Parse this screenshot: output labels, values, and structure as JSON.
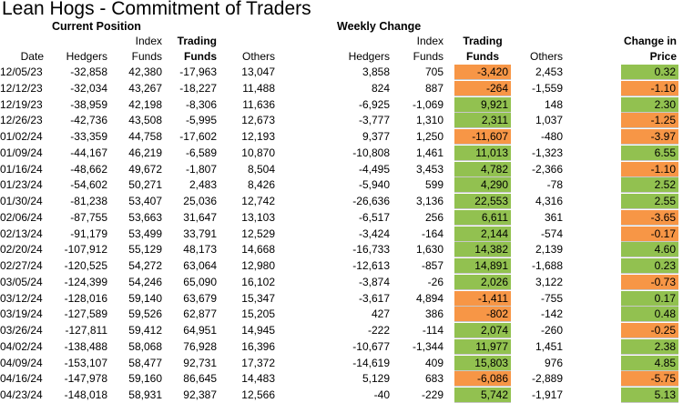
{
  "title": "Lean Hogs - Commitment of Traders",
  "sections": {
    "current_position": "Current Position",
    "weekly_change": "Weekly Change"
  },
  "headers": {
    "date": "Date",
    "hedgers": "Hedgers",
    "index_line1": "Index",
    "index_line2": "Funds",
    "trading_line1": "Trading",
    "trading_line2": "Funds",
    "others": "Others",
    "wc_hedgers": "Hedgers",
    "wc_index_line1": "Index",
    "wc_index_line2": "Funds",
    "wc_trading_line1": "Trading",
    "wc_trading_line2": "Funds",
    "wc_others": "Others",
    "price_line1": "Change in",
    "price_line2": "Price"
  },
  "colors": {
    "positive": "#92c150",
    "negative": "#f79646"
  },
  "rows": [
    {
      "date": "12/05/23",
      "hedgers": "-32,858",
      "index_funds": "42,380",
      "trading_funds": "-17,963",
      "others": "13,047",
      "chg_hedgers": "3,858",
      "chg_index": "705",
      "chg_trading": "-3,420",
      "chg_others": "2,453",
      "price_change": "0.32"
    },
    {
      "date": "12/12/23",
      "hedgers": "-32,034",
      "index_funds": "43,267",
      "trading_funds": "-18,227",
      "others": "11,488",
      "chg_hedgers": "824",
      "chg_index": "887",
      "chg_trading": "-264",
      "chg_others": "-1,559",
      "price_change": "-1.10"
    },
    {
      "date": "12/19/23",
      "hedgers": "-38,959",
      "index_funds": "42,198",
      "trading_funds": "-8,306",
      "others": "11,636",
      "chg_hedgers": "-6,925",
      "chg_index": "-1,069",
      "chg_trading": "9,921",
      "chg_others": "148",
      "price_change": "2.30"
    },
    {
      "date": "12/26/23",
      "hedgers": "-42,736",
      "index_funds": "43,508",
      "trading_funds": "-5,995",
      "others": "12,673",
      "chg_hedgers": "-3,777",
      "chg_index": "1,310",
      "chg_trading": "2,311",
      "chg_others": "1,037",
      "price_change": "-1.25"
    },
    {
      "date": "01/02/24",
      "hedgers": "-33,359",
      "index_funds": "44,758",
      "trading_funds": "-17,602",
      "others": "12,193",
      "chg_hedgers": "9,377",
      "chg_index": "1,250",
      "chg_trading": "-11,607",
      "chg_others": "-480",
      "price_change": "-3.97"
    },
    {
      "date": "01/09/24",
      "hedgers": "-44,167",
      "index_funds": "46,219",
      "trading_funds": "-6,589",
      "others": "10,870",
      "chg_hedgers": "-10,808",
      "chg_index": "1,461",
      "chg_trading": "11,013",
      "chg_others": "-1,323",
      "price_change": "6.55"
    },
    {
      "date": "01/16/24",
      "hedgers": "-48,662",
      "index_funds": "49,672",
      "trading_funds": "-1,807",
      "others": "8,504",
      "chg_hedgers": "-4,495",
      "chg_index": "3,453",
      "chg_trading": "4,782",
      "chg_others": "-2,366",
      "price_change": "-1.10"
    },
    {
      "date": "01/23/24",
      "hedgers": "-54,602",
      "index_funds": "50,271",
      "trading_funds": "2,483",
      "others": "8,426",
      "chg_hedgers": "-5,940",
      "chg_index": "599",
      "chg_trading": "4,290",
      "chg_others": "-78",
      "price_change": "2.52"
    },
    {
      "date": "01/30/24",
      "hedgers": "-81,238",
      "index_funds": "53,407",
      "trading_funds": "25,036",
      "others": "12,742",
      "chg_hedgers": "-26,636",
      "chg_index": "3,136",
      "chg_trading": "22,553",
      "chg_others": "4,316",
      "price_change": "2.55"
    },
    {
      "date": "02/06/24",
      "hedgers": "-87,755",
      "index_funds": "53,663",
      "trading_funds": "31,647",
      "others": "13,103",
      "chg_hedgers": "-6,517",
      "chg_index": "256",
      "chg_trading": "6,611",
      "chg_others": "361",
      "price_change": "-3.65"
    },
    {
      "date": "02/13/24",
      "hedgers": "-91,179",
      "index_funds": "53,499",
      "trading_funds": "33,791",
      "others": "12,529",
      "chg_hedgers": "-3,424",
      "chg_index": "-164",
      "chg_trading": "2,144",
      "chg_others": "-574",
      "price_change": "-0.17"
    },
    {
      "date": "02/20/24",
      "hedgers": "-107,912",
      "index_funds": "55,129",
      "trading_funds": "48,173",
      "others": "14,668",
      "chg_hedgers": "-16,733",
      "chg_index": "1,630",
      "chg_trading": "14,382",
      "chg_others": "2,139",
      "price_change": "4.60"
    },
    {
      "date": "02/27/24",
      "hedgers": "-120,525",
      "index_funds": "54,272",
      "trading_funds": "63,064",
      "others": "12,980",
      "chg_hedgers": "-12,613",
      "chg_index": "-857",
      "chg_trading": "14,891",
      "chg_others": "-1,688",
      "price_change": "0.23"
    },
    {
      "date": "03/05/24",
      "hedgers": "-124,399",
      "index_funds": "54,246",
      "trading_funds": "65,090",
      "others": "16,102",
      "chg_hedgers": "-3,874",
      "chg_index": "-26",
      "chg_trading": "2,026",
      "chg_others": "3,122",
      "price_change": "-0.73"
    },
    {
      "date": "03/12/24",
      "hedgers": "-128,016",
      "index_funds": "59,140",
      "trading_funds": "63,679",
      "others": "15,347",
      "chg_hedgers": "-3,617",
      "chg_index": "4,894",
      "chg_trading": "-1,411",
      "chg_others": "-755",
      "price_change": "0.17"
    },
    {
      "date": "03/19/24",
      "hedgers": "-127,589",
      "index_funds": "59,526",
      "trading_funds": "62,877",
      "others": "15,205",
      "chg_hedgers": "427",
      "chg_index": "386",
      "chg_trading": "-802",
      "chg_others": "-142",
      "price_change": "0.48"
    },
    {
      "date": "03/26/24",
      "hedgers": "-127,811",
      "index_funds": "59,412",
      "trading_funds": "64,951",
      "others": "14,945",
      "chg_hedgers": "-222",
      "chg_index": "-114",
      "chg_trading": "2,074",
      "chg_others": "-260",
      "price_change": "-0.25"
    },
    {
      "date": "04/02/24",
      "hedgers": "-138,488",
      "index_funds": "58,068",
      "trading_funds": "76,928",
      "others": "16,396",
      "chg_hedgers": "-10,677",
      "chg_index": "-1,344",
      "chg_trading": "11,977",
      "chg_others": "1,451",
      "price_change": "2.38"
    },
    {
      "date": "04/09/24",
      "hedgers": "-153,107",
      "index_funds": "58,477",
      "trading_funds": "92,731",
      "others": "17,372",
      "chg_hedgers": "-14,619",
      "chg_index": "409",
      "chg_trading": "15,803",
      "chg_others": "976",
      "price_change": "4.85"
    },
    {
      "date": "04/16/24",
      "hedgers": "-147,978",
      "index_funds": "59,160",
      "trading_funds": "86,645",
      "others": "14,483",
      "chg_hedgers": "5,129",
      "chg_index": "683",
      "chg_trading": "-6,086",
      "chg_others": "-2,889",
      "price_change": "-5.75"
    },
    {
      "date": "04/23/24",
      "hedgers": "-148,018",
      "index_funds": "58,931",
      "trading_funds": "92,387",
      "others": "12,566",
      "chg_hedgers": "-40",
      "chg_index": "-229",
      "chg_trading": "5,742",
      "chg_others": "-1,917",
      "price_change": "5.13"
    }
  ]
}
